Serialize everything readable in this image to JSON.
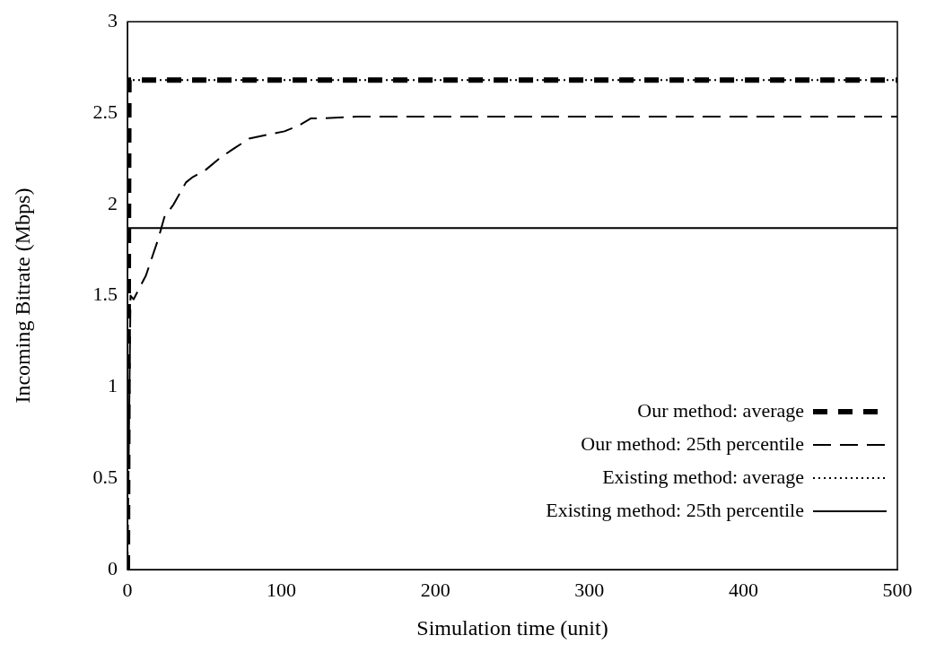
{
  "chart_data": {
    "type": "line",
    "xlabel": "Simulation time (unit)",
    "ylabel": "Incoming Bitrate (Mbps)",
    "xlim": [
      0,
      500
    ],
    "ylim": [
      0,
      3
    ],
    "xticks": [
      0,
      100,
      200,
      300,
      400,
      500
    ],
    "yticks": [
      0,
      0.5,
      1,
      1.5,
      2,
      2.5,
      3
    ],
    "legend": "bottom right",
    "series": [
      {
        "name": "Our method: average",
        "color": "#000000",
        "line_style": "dashed",
        "x": [
          0,
          1,
          500
        ],
        "values": [
          0,
          2.68,
          2.68
        ]
      },
      {
        "name": "Our method: 25th percentile",
        "color": "#000000",
        "line_style": "dashed",
        "x": [
          0,
          2,
          4,
          12,
          20,
          24,
          30,
          38,
          42.5,
          51,
          61,
          70,
          79,
          90,
          102,
          111,
          119,
          123,
          149,
          500
        ],
        "values": [
          0,
          1.5,
          1.48,
          1.61,
          1.81,
          1.93,
          2.0,
          2.12,
          2.15,
          2.19,
          2.26,
          2.31,
          2.36,
          2.38,
          2.4,
          2.43,
          2.47,
          2.47,
          2.48,
          2.48
        ]
      },
      {
        "name": "Existing method: average",
        "color": "#000000",
        "line_style": "dotted",
        "x": [
          0,
          500
        ],
        "values": [
          2.68,
          2.68
        ]
      },
      {
        "name": "Existing method: 25th percentile",
        "color": "#000000",
        "line_style": "solid",
        "x": [
          0,
          500
        ],
        "values": [
          1.87,
          1.87
        ]
      }
    ]
  }
}
